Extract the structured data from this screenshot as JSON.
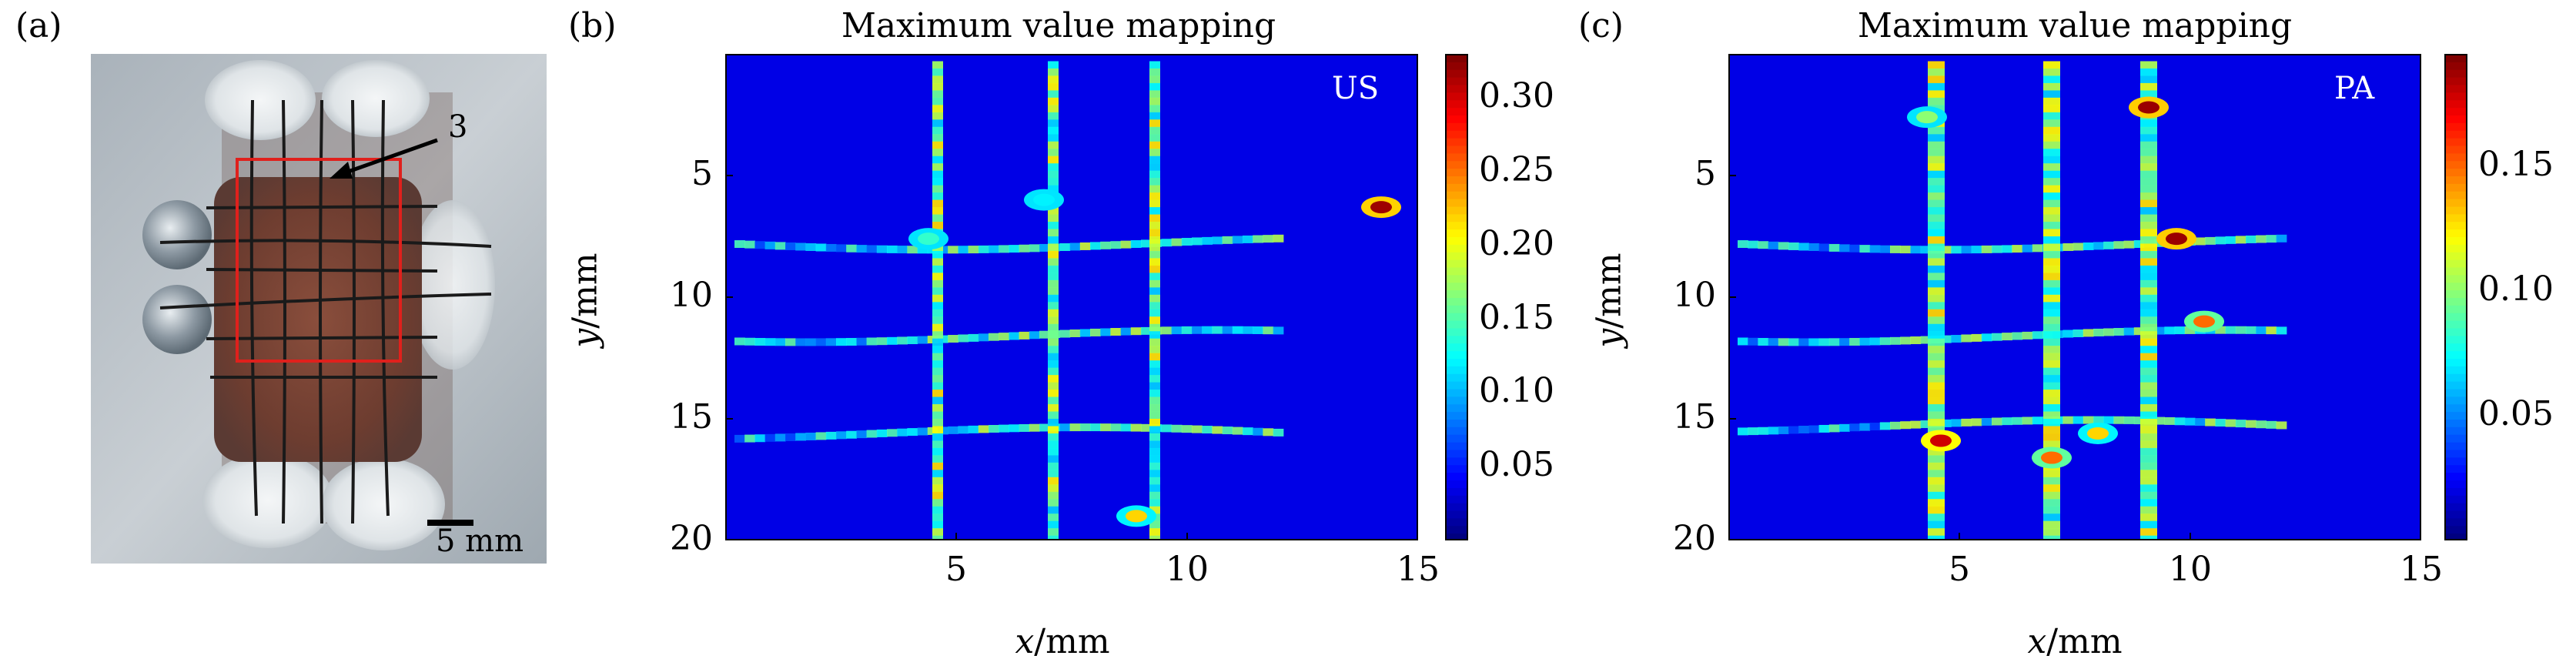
{
  "figure": {
    "panel_a_label": "(a)",
    "panel_b_label": "(b)",
    "panel_c_label": "(c)",
    "photo_annotation": "3",
    "photo_scale_label": "5 mm"
  },
  "colormap": "jet",
  "chart_data": [
    {
      "type": "heatmap",
      "title": "Maximum value mapping",
      "inset_label": "US",
      "xlabel_var": "x",
      "xlabel_unit": "/mm",
      "ylabel_var": "y",
      "ylabel_unit": "/mm",
      "xlim": [
        0,
        15
      ],
      "ylim": [
        20,
        0
      ],
      "xticks": [
        "5",
        "10",
        "15"
      ],
      "yticks": [
        "5",
        "10",
        "15",
        "20"
      ],
      "colorbar_ticks": [
        "0.05",
        "0.10",
        "0.15",
        "0.20",
        "0.25",
        "0.30"
      ],
      "colorbar_range": [
        0,
        0.33
      ],
      "features": {
        "vertical_lines_x": [
          4.6,
          7.1,
          9.3
        ],
        "horizontal_lines_y": [
          7.8,
          11.6,
          15.6
        ],
        "hotspots": [
          {
            "x": 14.2,
            "y": 6.3,
            "value": 0.32
          },
          {
            "x": 8.9,
            "y": 19.0,
            "value": 0.22
          },
          {
            "x": 4.4,
            "y": 7.6,
            "value": 0.14
          },
          {
            "x": 6.9,
            "y": 6.0,
            "value": 0.12
          }
        ]
      }
    },
    {
      "type": "heatmap",
      "title": "Maximum value mapping",
      "inset_label": "PA",
      "xlabel_var": "x",
      "xlabel_unit": "/mm",
      "ylabel_var": "y",
      "ylabel_unit": "/mm",
      "xlim": [
        0,
        15
      ],
      "ylim": [
        20,
        0
      ],
      "xticks": [
        "5",
        "10",
        "15"
      ],
      "yticks": [
        "5",
        "10",
        "15",
        "20"
      ],
      "colorbar_ticks": [
        "0.05",
        "0.10",
        "0.15"
      ],
      "colorbar_range": [
        0,
        0.195
      ],
      "features": {
        "vertical_lines_x": [
          4.5,
          7.0,
          9.1
        ],
        "horizontal_lines_y": [
          7.8,
          11.6,
          15.3
        ],
        "hotspots": [
          {
            "x": 9.1,
            "y": 2.2,
            "value": 0.19
          },
          {
            "x": 9.7,
            "y": 7.6,
            "value": 0.19
          },
          {
            "x": 4.6,
            "y": 15.9,
            "value": 0.18
          },
          {
            "x": 10.3,
            "y": 11.0,
            "value": 0.15
          },
          {
            "x": 7.0,
            "y": 16.6,
            "value": 0.15
          },
          {
            "x": 8.0,
            "y": 15.6,
            "value": 0.13
          },
          {
            "x": 4.3,
            "y": 2.6,
            "value": 0.1
          }
        ]
      }
    }
  ]
}
